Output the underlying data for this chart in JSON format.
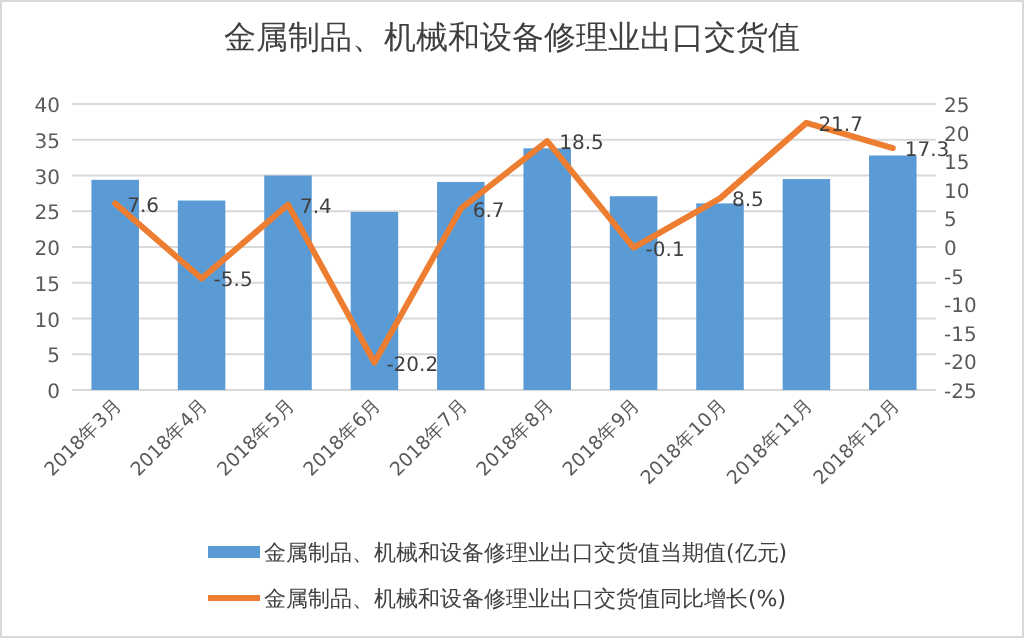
{
  "chart_data": {
    "type": "bar",
    "title": "金属制品、机械和设备修理业出口交货值",
    "categories": [
      "2018年3月",
      "2018年4月",
      "2018年5月",
      "2018年6月",
      "2018年7月",
      "2018年8月",
      "2018年9月",
      "2018年10月",
      "2018年11月",
      "2018年12月"
    ],
    "series": [
      {
        "name": "金属制品、机械和设备修理业出口交货值当期值(亿元)",
        "color": "#5b9bd5",
        "values": [
          29.4,
          26.5,
          30.0,
          24.9,
          29.1,
          33.8,
          27.1,
          26.1,
          29.5,
          32.8
        ]
      },
      {
        "name": "金属制品、机械和设备修理业出口交货值同比增长(%)",
        "type": "line",
        "axis": "y2",
        "color": "#ed7d31",
        "values": [
          7.6,
          -5.5,
          7.4,
          -20.2,
          6.7,
          18.5,
          -0.1,
          8.5,
          21.7,
          17.3
        ],
        "value_labels": [
          "7.6",
          "-5.5",
          "7.4",
          "-20.2",
          "6.7",
          "18.5",
          "-0.1",
          "8.5",
          "21.7",
          "17.3"
        ]
      }
    ],
    "ylim": [
      0,
      40
    ],
    "yticks": [
      0,
      5,
      10,
      15,
      20,
      25,
      30,
      35,
      40
    ],
    "y2lim": [
      -25,
      25
    ],
    "y2ticks": [
      -25,
      -20,
      -15,
      -10,
      -5,
      0,
      5,
      10,
      15,
      20,
      25
    ],
    "grid": "y",
    "legend": "bottom"
  }
}
